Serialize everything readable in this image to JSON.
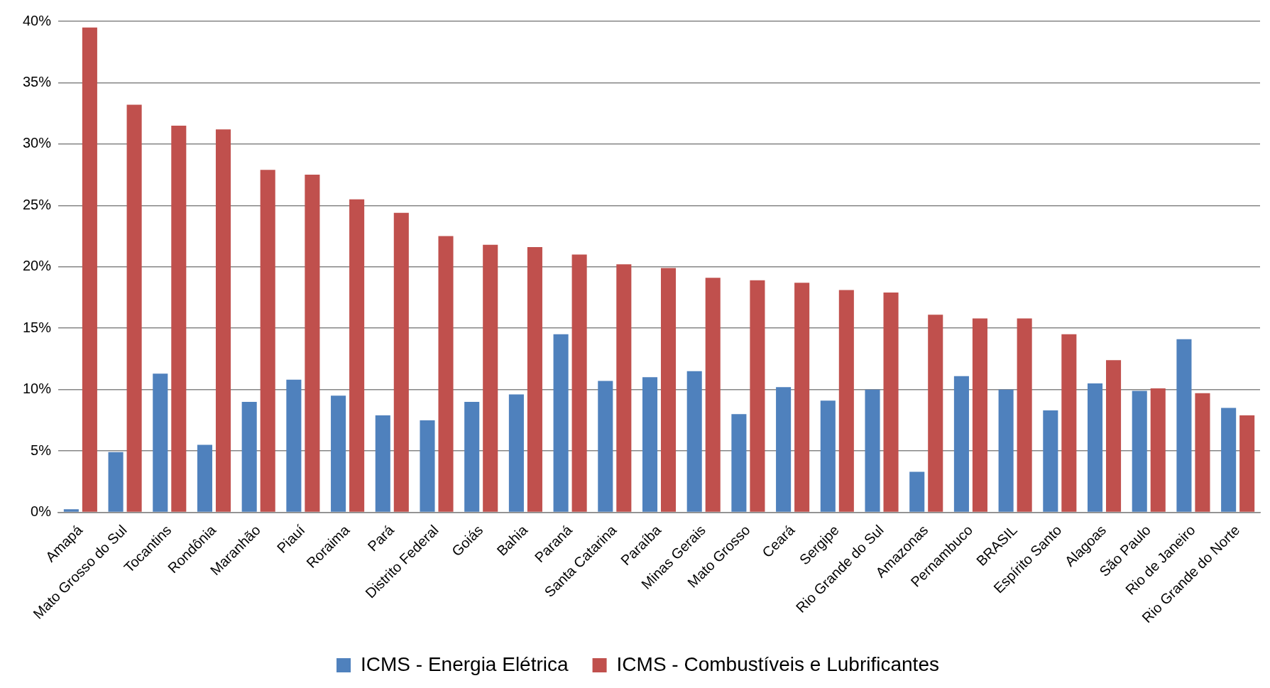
{
  "chart_data": {
    "type": "bar",
    "categories": [
      "Amapá",
      "Mato Grosso do Sul",
      "Tocantins",
      "Rondônia",
      "Maranhão",
      "Piauí",
      "Roraima",
      "Pará",
      "Distrito Federal",
      "Goiás",
      "Bahia",
      "Paraná",
      "Santa Catarina",
      "Paraíba",
      "Minas Gerais",
      "Mato Grosso",
      "Ceará",
      "Sergipe",
      "Rio Grande do Sul",
      "Amazonas",
      "Pernambuco",
      "BRASIL",
      "Espírito Santo",
      "Alagoas",
      "São Paulo",
      "Rio de Janeiro",
      "Rio Grande do Norte"
    ],
    "series": [
      {
        "name": "ICMS - Energia Elétrica",
        "color": "#4f81bd",
        "values": [
          0.25,
          4.9,
          11.3,
          5.5,
          9.0,
          10.8,
          9.5,
          7.9,
          7.5,
          9.0,
          9.6,
          14.5,
          10.7,
          11.0,
          11.5,
          8.0,
          10.2,
          9.1,
          10.0,
          3.3,
          11.1,
          10.0,
          8.3,
          10.5,
          9.9,
          14.1,
          8.5
        ]
      },
      {
        "name": "ICMS - Combustíveis e Lubrificantes",
        "color": "#c0504d",
        "values": [
          39.5,
          33.2,
          31.5,
          31.2,
          27.9,
          27.5,
          25.5,
          24.4,
          22.5,
          21.8,
          21.6,
          21.0,
          20.2,
          19.9,
          19.1,
          18.9,
          18.7,
          18.1,
          17.9,
          16.1,
          15.8,
          15.8,
          14.5,
          12.4,
          10.1,
          9.7,
          7.9
        ]
      }
    ],
    "ylim": [
      0,
      40
    ],
    "yticks": [
      {
        "value": 0,
        "label": "0%"
      },
      {
        "value": 5,
        "label": "5%"
      },
      {
        "value": 10,
        "label": "10%"
      },
      {
        "value": 15,
        "label": "15%"
      },
      {
        "value": 20,
        "label": "20%"
      },
      {
        "value": 25,
        "label": "25%"
      },
      {
        "value": 30,
        "label": "30%"
      },
      {
        "value": 35,
        "label": "35%"
      },
      {
        "value": 40,
        "label": "40%"
      }
    ],
    "grid": "y",
    "legend": "bottom"
  }
}
